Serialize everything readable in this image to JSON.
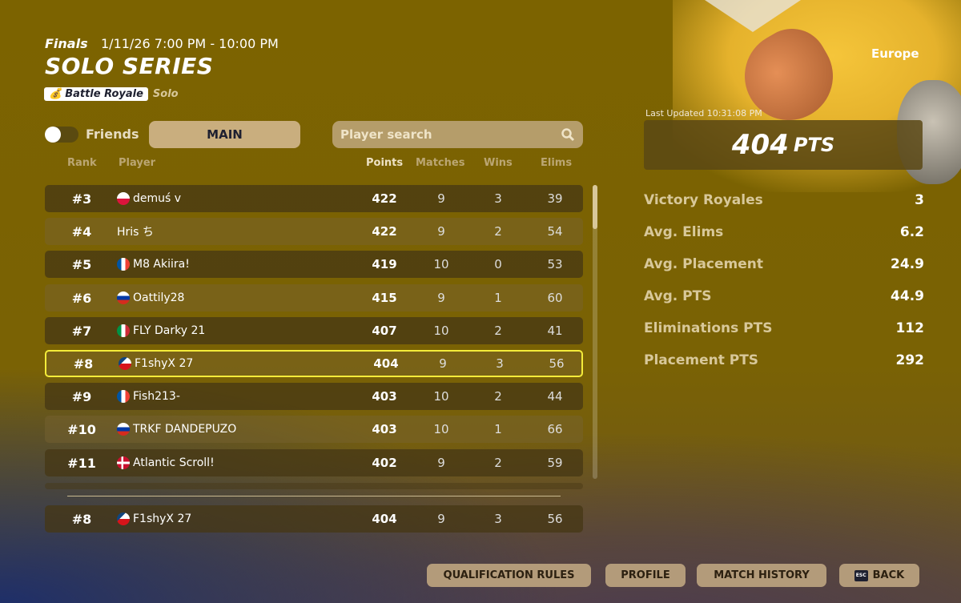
{
  "header": {
    "stage": "Finals",
    "datetime": "1/11/26 7:00 PM - 10:00 PM",
    "title": "SOLO SERIES",
    "mode_badge": "Battle Royale",
    "mode_icon": "money-bag-icon",
    "team_type": "Solo",
    "region": "Europe"
  },
  "filters": {
    "friends_label": "Friends",
    "friends_on": false,
    "main_tab": "MAIN",
    "search_placeholder": "Player search"
  },
  "columns": {
    "rank": "Rank",
    "player": "Player",
    "points": "Points",
    "matches": "Matches",
    "wins": "Wins",
    "elims": "Elims"
  },
  "rows": [
    {
      "rank": "#3",
      "flag": "PL",
      "player": "demuś v",
      "points": "422",
      "matches": "9",
      "wins": "3",
      "elims": "39"
    },
    {
      "rank": "#4",
      "flag": "",
      "player": "Hris ち",
      "points": "422",
      "matches": "9",
      "wins": "2",
      "elims": "54"
    },
    {
      "rank": "#5",
      "flag": "FR",
      "player": "M8 Akiira!",
      "points": "419",
      "matches": "10",
      "wins": "0",
      "elims": "53"
    },
    {
      "rank": "#6",
      "flag": "RU",
      "player": "Oattily28",
      "points": "415",
      "matches": "9",
      "wins": "1",
      "elims": "60"
    },
    {
      "rank": "#7",
      "flag": "IT",
      "player": "FLY Darky 21",
      "points": "407",
      "matches": "10",
      "wins": "2",
      "elims": "41"
    },
    {
      "rank": "#8",
      "flag": "CZ",
      "player": "F1shyX 27",
      "points": "404",
      "matches": "9",
      "wins": "3",
      "elims": "56",
      "selected": true
    },
    {
      "rank": "#9",
      "flag": "FR",
      "player": "Fish213-",
      "points": "403",
      "matches": "10",
      "wins": "2",
      "elims": "44"
    },
    {
      "rank": "#10",
      "flag": "RU",
      "player": "TRKF DANDEPUZO",
      "points": "403",
      "matches": "10",
      "wins": "1",
      "elims": "66"
    },
    {
      "rank": "#11",
      "flag": "DK",
      "player": "Atlantic Scroll!",
      "points": "402",
      "matches": "9",
      "wins": "2",
      "elims": "59"
    }
  ],
  "me": {
    "rank": "#8",
    "flag": "CZ",
    "player": "F1shyX 27",
    "points": "404",
    "matches": "9",
    "wins": "3",
    "elims": "56"
  },
  "summary": {
    "last_updated": "Last Updated 10:31:08 PM",
    "points": "404",
    "points_unit": "PTS",
    "stats": [
      {
        "label": "Victory Royales",
        "value": "3"
      },
      {
        "label": "Avg. Elims",
        "value": "6.2"
      },
      {
        "label": "Avg. Placement",
        "value": "24.9"
      },
      {
        "label": "Avg. PTS",
        "value": "44.9"
      },
      {
        "label": "Eliminations PTS",
        "value": "112"
      },
      {
        "label": "Placement PTS",
        "value": "292"
      }
    ]
  },
  "buttons": {
    "qualification": "QUALIFICATION RULES",
    "profile": "PROFILE",
    "history": "MATCH HISTORY",
    "back": "BACK",
    "back_key": "ESC"
  },
  "colors": {
    "background": "#7c6300",
    "highlight": "#f4ec3a",
    "button": "#b39b7a"
  }
}
